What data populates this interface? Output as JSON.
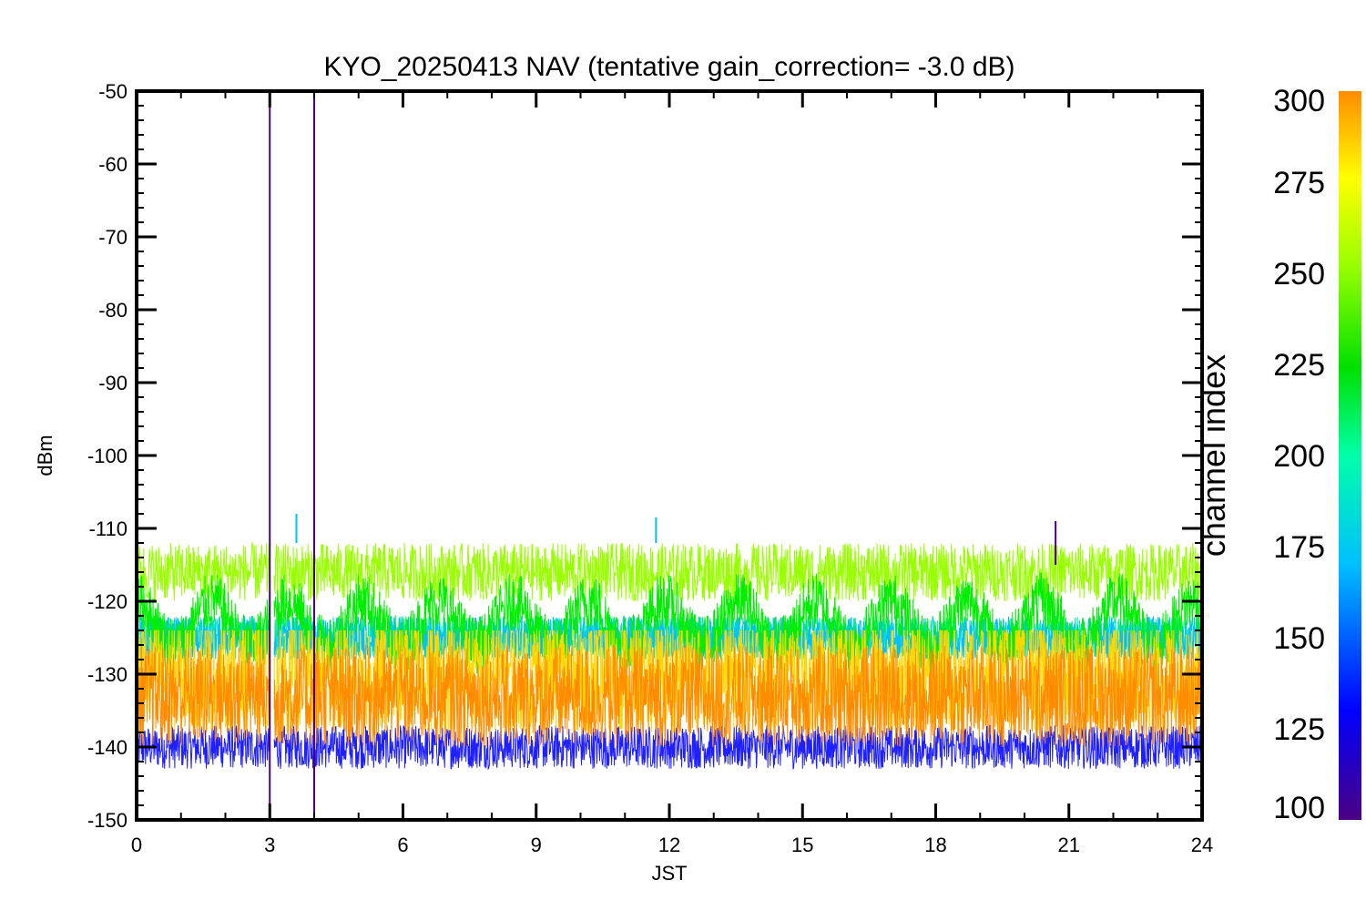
{
  "chart_data": {
    "type": "line",
    "title": "KYO_20250413 NAV (tentative gain_correction= -3.0 dB)",
    "xlabel": "JST",
    "ylabel": "dBm",
    "xlim": [
      0,
      24
    ],
    "ylim": [
      -150,
      -50
    ],
    "xticks": [
      "0",
      "3",
      "6",
      "9",
      "12",
      "15",
      "18",
      "21",
      "24"
    ],
    "yticks": [
      "-50",
      "-60",
      "-70",
      "-80",
      "-90",
      "-100",
      "-110",
      "-120",
      "-130",
      "-140",
      "-150"
    ],
    "grid": false,
    "colorbar": {
      "label": "channel index",
      "range": [
        100,
        300
      ],
      "ticks": [
        "300",
        "275",
        "250",
        "225",
        "200",
        "175",
        "150",
        "125",
        "100"
      ],
      "colors": [
        "#4b0082",
        "#0000ff",
        "#00bfff",
        "#00ffaa",
        "#00e000",
        "#99ff00",
        "#ffff00",
        "#ff8c00"
      ]
    },
    "series": [
      {
        "channel": 290,
        "color": "#ff8c00",
        "center_dbm": -133,
        "spread_db": 7,
        "band": [
          -140,
          -126
        ]
      },
      {
        "channel": 280,
        "color": "#ffd700",
        "center_dbm": -130,
        "spread_db": 8,
        "band": [
          -142,
          -127
        ]
      },
      {
        "channel": 255,
        "color": "#99ff00",
        "center_dbm": -116,
        "spread_db": 4,
        "band": [
          -120,
          -111
        ]
      },
      {
        "channel": 240,
        "color": "#00ee00",
        "center_dbm": -123,
        "spread_db": 4,
        "band": [
          -128,
          -119
        ],
        "period_h": 1.7
      },
      {
        "channel": 200,
        "color": "#00e8b0",
        "center_dbm": -125,
        "spread_db": 3,
        "band": [
          -128,
          -122
        ]
      },
      {
        "channel": 170,
        "color": "#00bfff",
        "center_dbm": -125,
        "spread_db": 3,
        "band": [
          -128,
          -122
        ]
      },
      {
        "channel": 130,
        "color": "#2020ff",
        "center_dbm": -140,
        "spread_db": 3,
        "band": [
          -144,
          -137
        ]
      }
    ],
    "events": [
      {
        "x": 3.0,
        "y_top": -50,
        "y_bottom": -150,
        "color": "#4b0082"
      },
      {
        "x": 4.0,
        "y_top": -50,
        "y_bottom": -150,
        "color": "#4b0082"
      },
      {
        "x": 3.0,
        "y_top": -148,
        "y_bottom": -150,
        "color": "#ff8c00"
      },
      {
        "x": 3.6,
        "y_top": -108,
        "y_bottom": -112,
        "color": "#00bfff"
      },
      {
        "x": 11.7,
        "y_top": -108.5,
        "y_bottom": -112,
        "color": "#00bfff"
      },
      {
        "x": 20.7,
        "y_top": -109,
        "y_bottom": -115,
        "color": "#4b0082"
      }
    ],
    "data_gap": [
      3.0,
      3.1
    ]
  }
}
